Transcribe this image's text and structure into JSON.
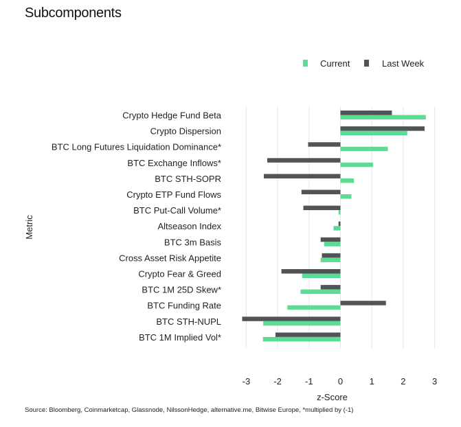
{
  "chart_data": {
    "type": "bar",
    "orientation": "horizontal",
    "title": "Subcomponents",
    "xlabel": "z-Score",
    "ylabel": "Metric",
    "xlim": [
      -3.3,
      3.3
    ],
    "xticks": [
      -3,
      -2,
      -1,
      0,
      1,
      2,
      3
    ],
    "grid": true,
    "legend_position": "top-right",
    "categories": [
      "Crypto Hedge Fund Beta",
      "Crypto Dispersion",
      "BTC Long Futures Liquidation Dominance*",
      "BTC Exchange Inflows*",
      "BTC STH-SOPR",
      "Crypto ETP Fund Flows",
      "BTC Put-Call Volume*",
      "Altseason Index",
      "BTC 3m Basis",
      "Cross Asset Risk Appetite",
      "Crypto Fear & Greed",
      "BTC 1M 25D Skew*",
      "BTC Funding Rate",
      "BTC STH-NUPL",
      "BTC 1M Implied Vol*"
    ],
    "series": [
      {
        "name": "Current",
        "color": "#5ddb95",
        "values": [
          2.72,
          2.13,
          1.51,
          1.04,
          0.43,
          0.35,
          -0.06,
          -0.22,
          -0.52,
          -0.63,
          -1.22,
          -1.27,
          -1.69,
          -2.46,
          -2.47
        ]
      },
      {
        "name": "Last Week",
        "color": "#505456",
        "values": [
          1.64,
          2.68,
          -1.03,
          -2.33,
          -2.44,
          -1.24,
          -1.18,
          -0.06,
          -0.63,
          -0.59,
          -1.88,
          -0.63,
          1.45,
          -3.13,
          -2.07
        ]
      }
    ]
  },
  "source": "Source: Bloomberg, Coinmarketcap, Glassnode, NilssonHedge, alternative.me, Bitwise Europe, *multiplied by (-1)"
}
